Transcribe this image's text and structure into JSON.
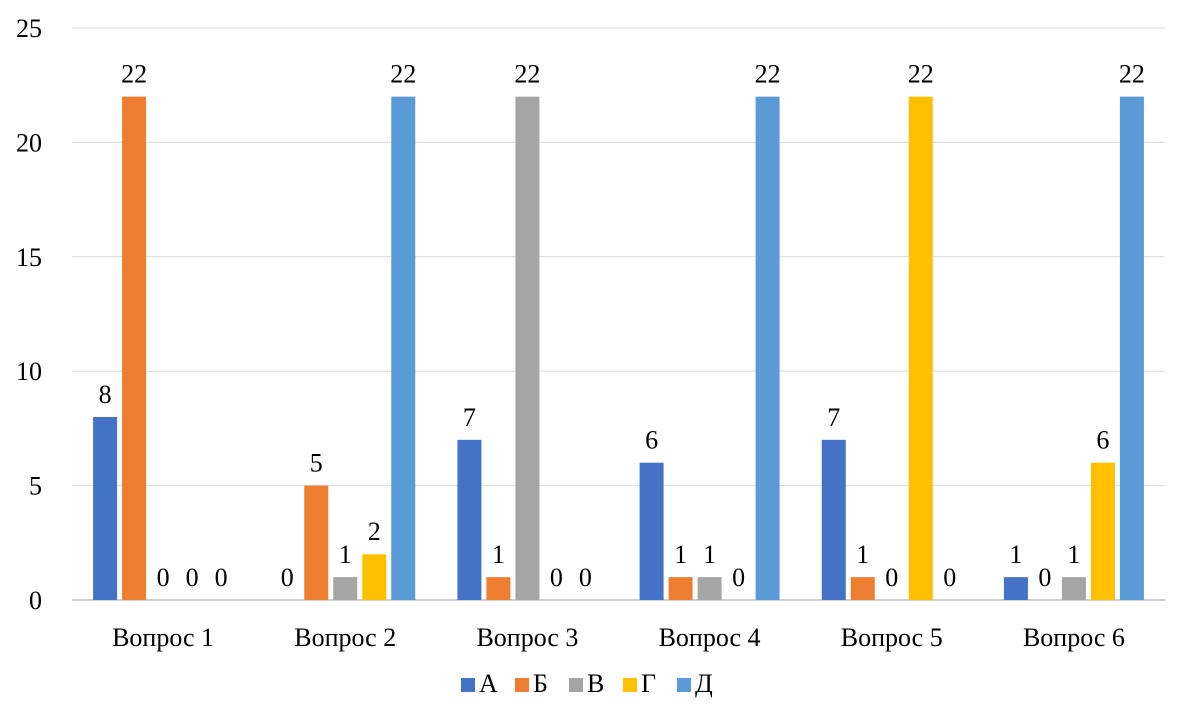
{
  "chart_data": {
    "type": "bar",
    "title": "",
    "xlabel": "",
    "ylabel": "",
    "ylim": [
      0,
      25
    ],
    "yticks": [
      0,
      5,
      10,
      15,
      20,
      25
    ],
    "grid": true,
    "legend_position": "bottom",
    "categories": [
      "Вопрос 1",
      "Вопрос 2",
      "Вопрос 3",
      "Вопрос 4",
      "Вопрос 5",
      "Вопрос 6"
    ],
    "series": [
      {
        "name": "А",
        "color": "#4472C4",
        "values": [
          8,
          0,
          7,
          6,
          7,
          1
        ]
      },
      {
        "name": "Б",
        "color": "#ED7D31",
        "values": [
          22,
          5,
          1,
          1,
          1,
          0
        ]
      },
      {
        "name": "В",
        "color": "#A5A5A5",
        "values": [
          0,
          1,
          22,
          1,
          0,
          1
        ]
      },
      {
        "name": "Г",
        "color": "#FFC000",
        "values": [
          0,
          2,
          0,
          0,
          22,
          6
        ]
      },
      {
        "name": "Д",
        "color": "#5B9BD5",
        "values": [
          0,
          22,
          0,
          22,
          0,
          22
        ]
      }
    ]
  }
}
